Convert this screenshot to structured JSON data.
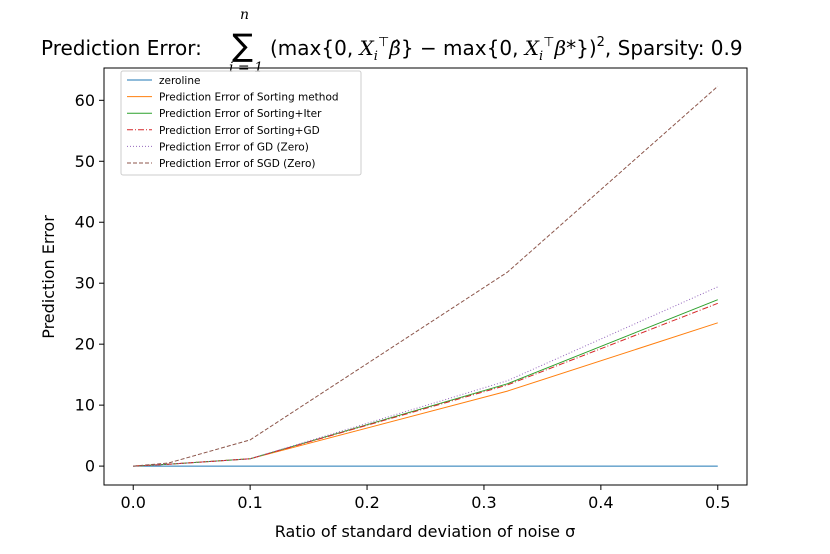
{
  "chart_data": {
    "type": "line",
    "title": "Prediction Error: ∑(max{0, Xᵢᵀβ̂} − max{0, Xᵢᵀβ*})², Sparsity: 0.9",
    "title_prefix": "Prediction Error:",
    "title_suffix": ", Sparsity: 0.9",
    "title_sum_upper": "n",
    "title_sum_lower": "i = 1",
    "xlabel": "Ratio of standard deviation of noise σ",
    "ylabel": "Prediction Error",
    "xlim": [
      -0.025,
      0.525
    ],
    "ylim": [
      -3.1,
      65.3
    ],
    "xticks": [
      0.0,
      0.1,
      0.2,
      0.3,
      0.4,
      0.5
    ],
    "xtick_labels": [
      "0.0",
      "0.1",
      "0.2",
      "0.3",
      "0.4",
      "0.5"
    ],
    "yticks": [
      0,
      10,
      20,
      30,
      40,
      50,
      60
    ],
    "ytick_labels": [
      "0",
      "10",
      "20",
      "30",
      "40",
      "50",
      "60"
    ],
    "grid": false,
    "legend_position": "top-left",
    "x": [
      0.0,
      0.03,
      0.1,
      0.32,
      0.5
    ],
    "series": [
      {
        "name": "zeroline",
        "color": "#1f77b4",
        "dash": "solid",
        "values": [
          0,
          0,
          0,
          0,
          0
        ]
      },
      {
        "name": "Prediction Error of Sorting method",
        "color": "#ff7f0e",
        "dash": "solid",
        "values": [
          0,
          0.3,
          1.2,
          12.3,
          23.5
        ]
      },
      {
        "name": "Prediction Error of Sorting+Iter",
        "color": "#2ca02c",
        "dash": "solid",
        "values": [
          0,
          0.3,
          1.2,
          13.5,
          27.3
        ]
      },
      {
        "name": "Prediction Error of Sorting+GD",
        "color": "#d62728",
        "dash": "dashdot",
        "values": [
          0,
          0.3,
          1.2,
          13.3,
          26.7
        ]
      },
      {
        "name": "Prediction Error of GD (Zero)",
        "color": "#9467bd",
        "dash": "dotted",
        "values": [
          0,
          0.3,
          1.2,
          14.0,
          29.4
        ]
      },
      {
        "name": "Prediction Error of SGD (Zero)",
        "color": "#8c564b",
        "dash": "dashed",
        "values": [
          0,
          0.5,
          4.3,
          31.8,
          62.3
        ]
      }
    ]
  }
}
